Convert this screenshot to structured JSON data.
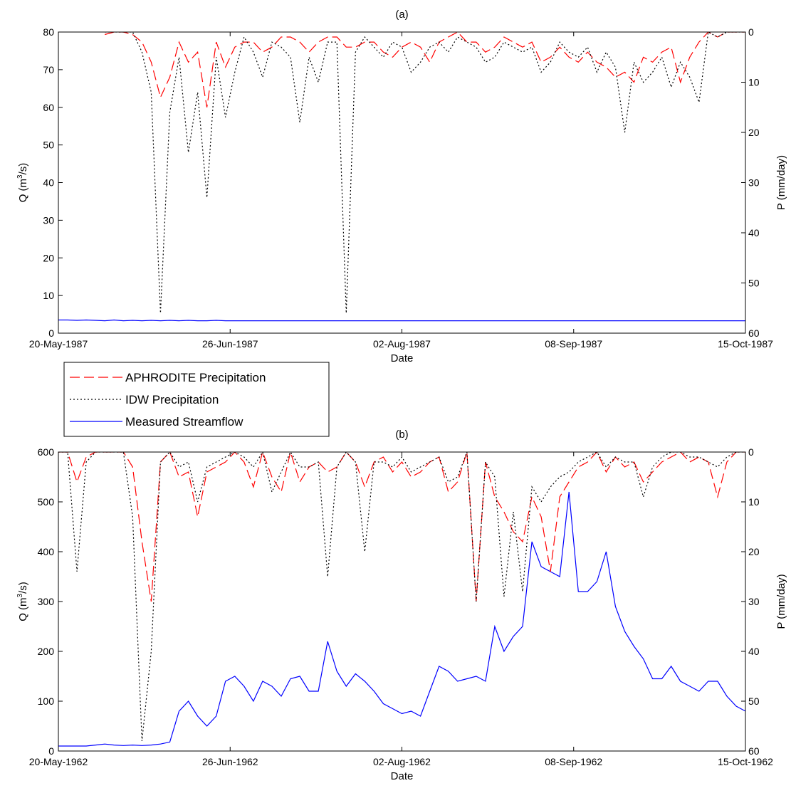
{
  "chart_data": [
    {
      "type": "line",
      "title": "(a)",
      "xlabel": "Date",
      "ylabel_left_base": "Q (m",
      "ylabel_left_sup": "3",
      "ylabel_left_tail": "/s)",
      "ylabel_right": "P (mm/day)",
      "x_tick_labels": [
        "20-May-1987",
        "26-Jun-1987",
        "02-Aug-1987",
        "08-Sep-1987",
        "15-Oct-1987"
      ],
      "x_range_days": [
        0,
        148
      ],
      "ylim_left": [
        0,
        80
      ],
      "left_ticks": [
        0,
        10,
        20,
        30,
        40,
        50,
        60,
        70,
        80
      ],
      "ylim_right_reversed": [
        0,
        60
      ],
      "right_ticks": [
        0,
        10,
        20,
        30,
        40,
        50,
        60
      ],
      "grid": false,
      "series": [
        {
          "name": "Measured Streamflow",
          "axis": "left",
          "color": "#0000ff",
          "style": "solid",
          "x": [
            0,
            2,
            4,
            6,
            8,
            10,
            12,
            14,
            16,
            18,
            20,
            22,
            24,
            26,
            28,
            30,
            32,
            34,
            36,
            38,
            40,
            42,
            44,
            46,
            48,
            50,
            52,
            54,
            56,
            58,
            60,
            62,
            64,
            66,
            68,
            70,
            72,
            74,
            76,
            78,
            80,
            82,
            84,
            86,
            88,
            90,
            92,
            94,
            96,
            98,
            100,
            102,
            104,
            106,
            108,
            110,
            112,
            114,
            116,
            118,
            120,
            122,
            124,
            126,
            128,
            130,
            132,
            134,
            136,
            138,
            140,
            142,
            144,
            146,
            148
          ],
          "y": [
            3.5,
            3.5,
            3.4,
            3.5,
            3.4,
            3.3,
            3.5,
            3.3,
            3.4,
            3.3,
            3.4,
            3.3,
            3.4,
            3.3,
            3.4,
            3.3,
            3.3,
            3.4,
            3.3,
            3.3,
            3.3,
            3.3,
            3.3,
            3.3,
            3.3,
            3.3,
            3.3,
            3.3,
            3.3,
            3.3,
            3.3,
            3.3,
            3.3,
            3.3,
            3.3,
            3.3,
            3.3,
            3.3,
            3.3,
            3.3,
            3.3,
            3.3,
            3.3,
            3.3,
            3.3,
            3.3,
            3.3,
            3.3,
            3.3,
            3.3,
            3.3,
            3.3,
            3.3,
            3.3,
            3.3,
            3.3,
            3.3,
            3.3,
            3.3,
            3.3,
            3.3,
            3.3,
            3.3,
            3.3,
            3.3,
            3.3,
            3.3,
            3.3,
            3.3,
            3.3,
            3.3,
            3.3,
            3.3,
            3.3,
            3.3
          ]
        },
        {
          "name": "APHRODITE Precipitation",
          "axis": "right",
          "color": "#ff0000",
          "style": "dashed",
          "x": [
            10,
            12,
            14,
            16,
            18,
            20,
            22,
            24,
            26,
            28,
            30,
            32,
            34,
            36,
            38,
            40,
            42,
            44,
            46,
            48,
            50,
            52,
            54,
            56,
            58,
            60,
            62,
            64,
            66,
            68,
            70,
            72,
            74,
            76,
            78,
            80,
            82,
            84,
            86,
            88,
            90,
            92,
            94,
            96,
            98,
            100,
            102,
            104,
            106,
            108,
            110,
            112,
            114,
            116,
            118,
            120,
            122,
            124,
            126,
            128,
            130,
            132,
            134,
            136,
            138,
            140,
            142,
            144,
            146,
            148
          ],
          "y": [
            0.5,
            0,
            0,
            0.5,
            2,
            6,
            13,
            9,
            2,
            6,
            4,
            15,
            2,
            7,
            3,
            2,
            2,
            4,
            3,
            1,
            1,
            2,
            4,
            2,
            1,
            1,
            3,
            3,
            2,
            2,
            4,
            5,
            3,
            2,
            3,
            6,
            2,
            1,
            0,
            2,
            2,
            4,
            3,
            1,
            2,
            3,
            2,
            6,
            5,
            3,
            5,
            6,
            4,
            6,
            7,
            9,
            8,
            10,
            5,
            6,
            4,
            3,
            10,
            5,
            2,
            0,
            1,
            0,
            0,
            0
          ]
        },
        {
          "name": "IDW Precipitation",
          "axis": "right",
          "color": "#000000",
          "style": "dotted",
          "x": [
            10,
            12,
            14,
            16,
            18,
            20,
            22,
            24,
            26,
            28,
            30,
            32,
            34,
            36,
            38,
            40,
            42,
            44,
            46,
            48,
            50,
            52,
            54,
            56,
            58,
            60,
            62,
            64,
            66,
            68,
            70,
            72,
            74,
            76,
            78,
            80,
            82,
            84,
            86,
            88,
            90,
            92,
            94,
            96,
            98,
            100,
            102,
            104,
            106,
            108,
            110,
            112,
            114,
            116,
            118,
            120,
            122,
            124,
            126,
            128,
            130,
            132,
            134,
            136,
            138,
            140,
            142,
            144,
            146,
            148
          ],
          "y": [
            0,
            0,
            0,
            0,
            4,
            12,
            56,
            16,
            5,
            24,
            12,
            33,
            5,
            17,
            8,
            1,
            4,
            9,
            2,
            3,
            5,
            18,
            5,
            10,
            2,
            2,
            56,
            4,
            1,
            3,
            5,
            2,
            3,
            8,
            6,
            3,
            2,
            4,
            1,
            2,
            3,
            6,
            5,
            2,
            3,
            4,
            3,
            8,
            6,
            2,
            4,
            5,
            3,
            8,
            4,
            7,
            20,
            6,
            10,
            8,
            5,
            11,
            6,
            9,
            14,
            0,
            1,
            0,
            0,
            0
          ]
        }
      ]
    },
    {
      "type": "line",
      "title": "(b)",
      "xlabel": "Date",
      "ylabel_left_base": "Q (m",
      "ylabel_left_sup": "3",
      "ylabel_left_tail": "/s)",
      "ylabel_right": "P (mm/day)",
      "x_tick_labels": [
        "20-May-1962",
        "26-Jun-1962",
        "02-Aug-1962",
        "08-Sep-1962",
        "15-Oct-1962"
      ],
      "x_range_days": [
        0,
        148
      ],
      "ylim_left": [
        0,
        600
      ],
      "left_ticks": [
        0,
        100,
        200,
        300,
        400,
        500,
        600
      ],
      "ylim_right_reversed": [
        0,
        60
      ],
      "right_ticks": [
        0,
        10,
        20,
        30,
        40,
        50,
        60
      ],
      "grid": false,
      "series": [
        {
          "name": "Measured Streamflow",
          "axis": "left",
          "color": "#0000ff",
          "style": "solid",
          "x": [
            0,
            2,
            4,
            6,
            8,
            10,
            12,
            14,
            16,
            18,
            20,
            22,
            24,
            26,
            28,
            30,
            32,
            34,
            36,
            38,
            40,
            42,
            44,
            46,
            48,
            50,
            52,
            54,
            56,
            58,
            60,
            62,
            64,
            66,
            68,
            70,
            72,
            74,
            76,
            78,
            80,
            82,
            84,
            86,
            88,
            90,
            92,
            94,
            96,
            98,
            100,
            102,
            104,
            106,
            108,
            110,
            112,
            114,
            116,
            118,
            120,
            122,
            124,
            126,
            128,
            130,
            132,
            134,
            136,
            138,
            140,
            142,
            144,
            146,
            148
          ],
          "y": [
            10,
            10,
            10,
            10,
            12,
            14,
            12,
            11,
            12,
            11,
            12,
            14,
            18,
            80,
            100,
            70,
            50,
            70,
            140,
            150,
            130,
            100,
            140,
            130,
            110,
            145,
            150,
            120,
            120,
            220,
            160,
            130,
            155,
            140,
            120,
            95,
            85,
            75,
            80,
            70,
            120,
            170,
            160,
            140,
            145,
            150,
            140,
            250,
            200,
            230,
            250,
            420,
            370,
            360,
            350,
            520,
            320,
            320,
            340,
            400,
            290,
            240,
            210,
            185,
            145,
            145,
            170,
            140,
            130,
            120,
            140,
            140,
            110,
            90,
            80
          ]
        },
        {
          "name": "APHRODITE Precipitation",
          "axis": "right",
          "color": "#ff0000",
          "style": "dashed",
          "x": [
            0,
            2,
            4,
            6,
            8,
            10,
            12,
            14,
            16,
            18,
            20,
            22,
            24,
            26,
            28,
            30,
            32,
            34,
            36,
            38,
            40,
            42,
            44,
            46,
            48,
            50,
            52,
            54,
            56,
            58,
            60,
            62,
            64,
            66,
            68,
            70,
            72,
            74,
            76,
            78,
            80,
            82,
            84,
            86,
            88,
            90,
            92,
            94,
            96,
            98,
            100,
            102,
            104,
            106,
            108,
            110,
            112,
            114,
            116,
            118,
            120,
            122,
            124,
            126,
            128,
            130,
            132,
            134,
            136,
            138,
            140,
            142,
            144,
            146,
            148
          ],
          "y": [
            0,
            0,
            6,
            1,
            0,
            0,
            0,
            0,
            3,
            18,
            30,
            2,
            0,
            5,
            4,
            13,
            4,
            3,
            2,
            0,
            2,
            7,
            0,
            5,
            8,
            0,
            6,
            3,
            2,
            4,
            3,
            0,
            2,
            7,
            2,
            1,
            4,
            2,
            5,
            4,
            2,
            1,
            8,
            6,
            0,
            30,
            2,
            9,
            12,
            16,
            18,
            9,
            13,
            24,
            9,
            6,
            3,
            2,
            0,
            4,
            1,
            3,
            2,
            6,
            4,
            2,
            1,
            0,
            2,
            1,
            2,
            9,
            2,
            0,
            0
          ]
        },
        {
          "name": "IDW Precipitation",
          "axis": "right",
          "color": "#000000",
          "style": "dotted",
          "x": [
            0,
            2,
            4,
            6,
            8,
            10,
            12,
            14,
            16,
            18,
            20,
            22,
            24,
            26,
            28,
            30,
            32,
            34,
            36,
            38,
            40,
            42,
            44,
            46,
            48,
            50,
            52,
            54,
            56,
            58,
            60,
            62,
            64,
            66,
            68,
            70,
            72,
            74,
            76,
            78,
            80,
            82,
            84,
            86,
            88,
            90,
            92,
            94,
            96,
            98,
            100,
            102,
            104,
            106,
            108,
            110,
            112,
            114,
            116,
            118,
            120,
            122,
            124,
            126,
            128,
            130,
            132,
            134,
            136,
            138,
            140,
            142,
            144,
            146,
            148
          ],
          "y": [
            0,
            0,
            24,
            2,
            0,
            0,
            0,
            0,
            13,
            58,
            40,
            2,
            0,
            3,
            2,
            10,
            3,
            2,
            1,
            0,
            1,
            3,
            0,
            8,
            4,
            0,
            3,
            3,
            2,
            25,
            3,
            0,
            2,
            20,
            2,
            2,
            3,
            1,
            4,
            3,
            2,
            1,
            6,
            5,
            0,
            30,
            2,
            5,
            29,
            12,
            28,
            7,
            10,
            7,
            5,
            4,
            2,
            1,
            0,
            3,
            1,
            2,
            2,
            9,
            3,
            1,
            0,
            0,
            1,
            1,
            2,
            3,
            1,
            0,
            0
          ]
        }
      ]
    }
  ],
  "legend": {
    "items": [
      {
        "label": "APHRODITE Precipitation",
        "color": "#ff0000",
        "style": "dashed"
      },
      {
        "label": "IDW Precipitation",
        "color": "#000000",
        "style": "dotted"
      },
      {
        "label": "Measured Streamflow",
        "color": "#0000ff",
        "style": "solid"
      }
    ]
  }
}
